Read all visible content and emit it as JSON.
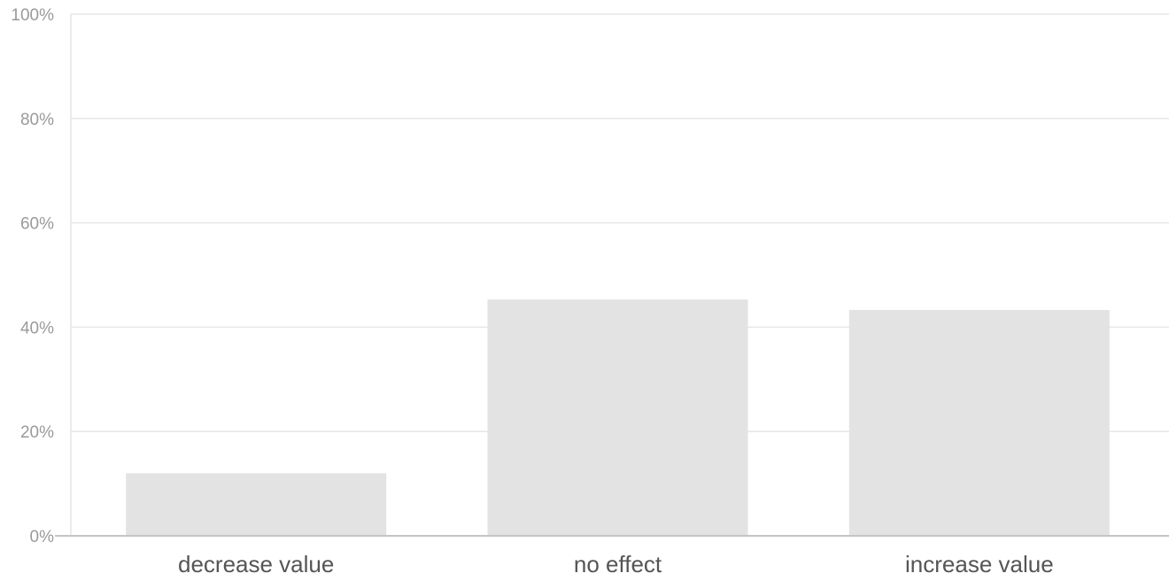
{
  "chart_data": {
    "type": "bar",
    "title": "",
    "xlabel": "",
    "ylabel": "",
    "categories": [
      "decrease value",
      "no effect",
      "increase value"
    ],
    "values": [
      12,
      45.3,
      43.3
    ],
    "ylim": [
      0,
      100
    ],
    "yticks": [
      0,
      20,
      40,
      60,
      80,
      100
    ],
    "ytick_labels": [
      "0%",
      "20%",
      "40%",
      "60%",
      "80%",
      "100%"
    ],
    "grid": true,
    "bar_color": "#e3e3e3"
  }
}
